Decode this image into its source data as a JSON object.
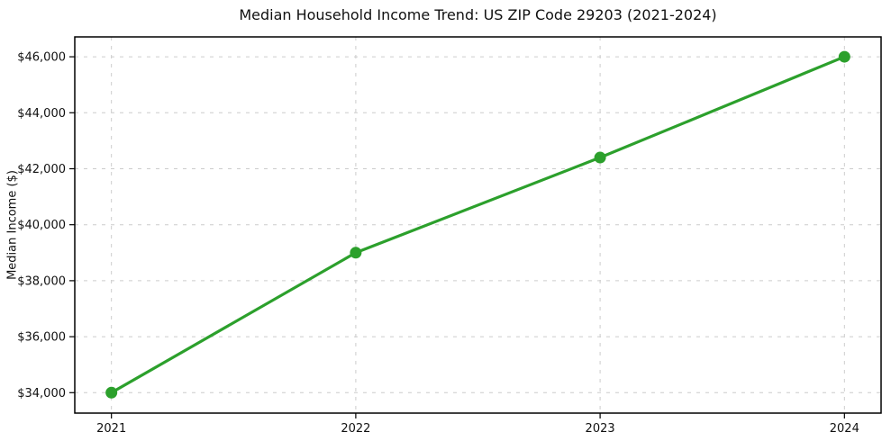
{
  "figure": {
    "title": "Median Household Income Trend: US ZIP Code 29203 (2021-2024)"
  },
  "chart_data": {
    "type": "line",
    "title": "Median Household Income Trend: US ZIP Code 29203 (2021-2024)",
    "xlabel": "",
    "ylabel": "Median Income ($)",
    "x": [
      2021,
      2022,
      2023,
      2024
    ],
    "values": [
      34000,
      39000,
      42400,
      46000
    ],
    "xticks": [
      2021,
      2022,
      2023,
      2024
    ],
    "xtick_labels": [
      "2021",
      "2022",
      "2023",
      "2024"
    ],
    "yticks": [
      34000,
      36000,
      38000,
      40000,
      42000,
      44000,
      46000
    ],
    "ytick_labels": [
      "$34,000",
      "$36,000",
      "$38,000",
      "$40,000",
      "$42,000",
      "$44,000",
      "$46,000"
    ],
    "xlim": [
      2020.85,
      2024.15
    ],
    "ylim": [
      33270,
      46710
    ],
    "grid": "both, dashed",
    "legend": "none",
    "line_color": "#2ca02c",
    "marker": "circle",
    "marker_color": "#2ca02c",
    "grid_color": "#cccccc",
    "background_color": "#ffffff"
  }
}
